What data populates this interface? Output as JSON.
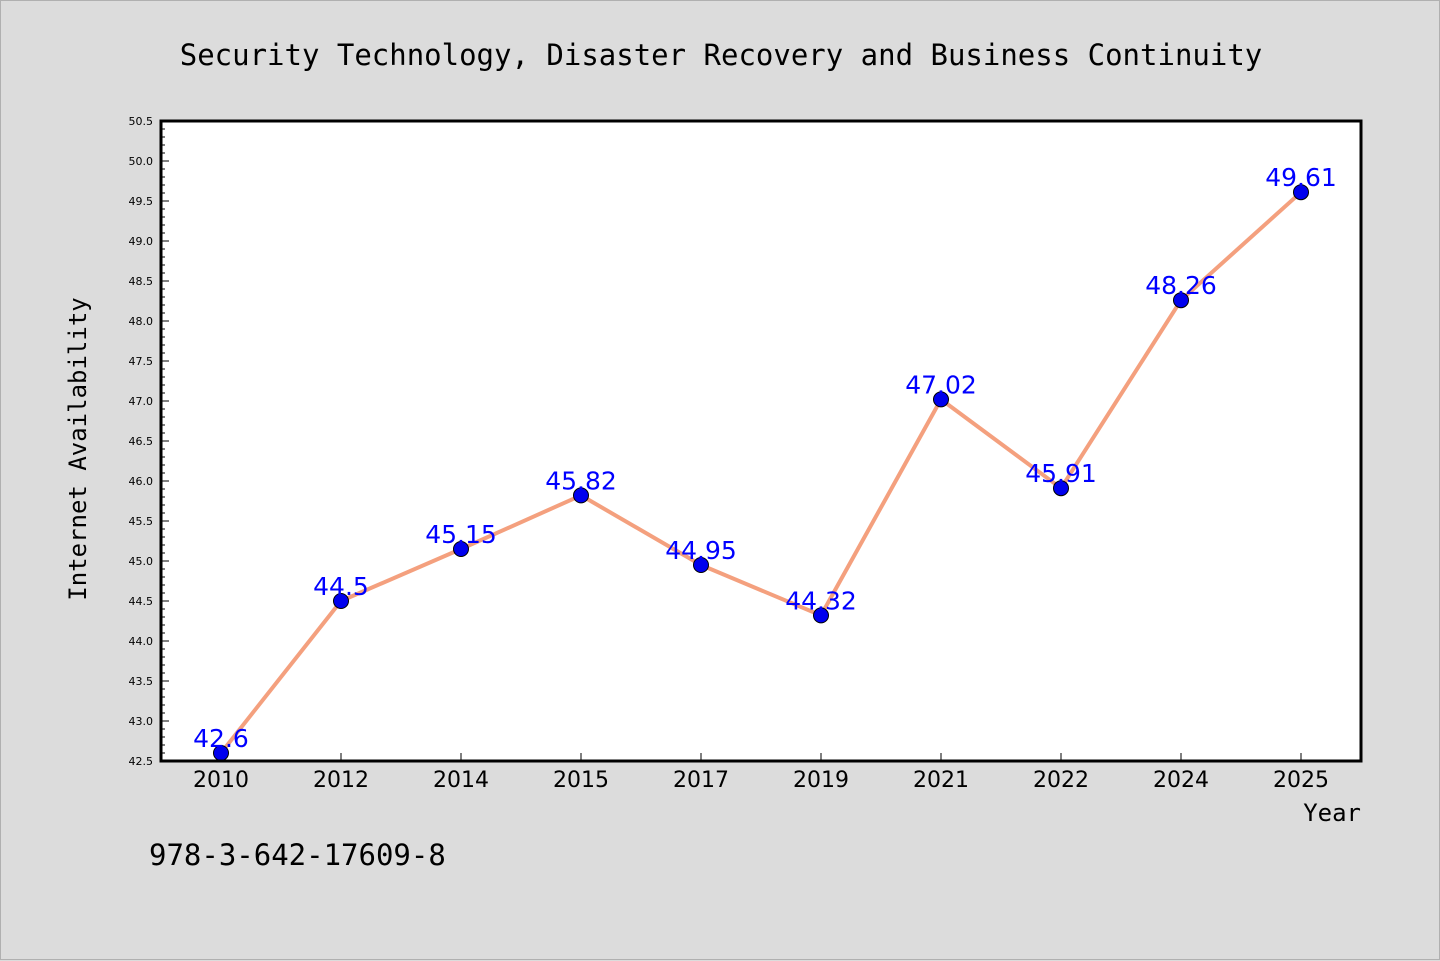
{
  "chart_data": {
    "type": "line",
    "title": "Security Technology, Disaster Recovery and Business Continuity",
    "xlabel": "Year",
    "ylabel": "Internet Availability",
    "categories": [
      "2010",
      "2012",
      "2014",
      "2015",
      "2017",
      "2019",
      "2021",
      "2022",
      "2024",
      "2025"
    ],
    "series": [
      {
        "values": [
          42.6,
          44.5,
          45.15,
          45.82,
          44.95,
          44.32,
          47.02,
          45.91,
          48.26,
          49.61
        ]
      }
    ],
    "data_labels": [
      "42.6",
      "44.5",
      "45.15",
      "45.82",
      "44.95",
      "44.32",
      "47.02",
      "45.91",
      "48.26",
      "49.61"
    ],
    "yticks": [
      "42.5",
      "43.0",
      "43.5",
      "44.0",
      "44.5",
      "45.0",
      "45.5",
      "46.0",
      "46.5",
      "47.0",
      "47.5",
      "48.0",
      "48.5",
      "49.0",
      "49.5",
      "50.0",
      "50.5"
    ],
    "ylim": [
      42.5,
      50.5
    ],
    "grid": false,
    "legend": "none",
    "colors": {
      "line": "#f4a07e",
      "marker": "#0000ee",
      "label": "#0000ff",
      "plot_bg": "#ffffff",
      "page_bg": "#dcdcdc"
    }
  },
  "footer": {
    "isbn": "978-3-642-17609-8"
  }
}
